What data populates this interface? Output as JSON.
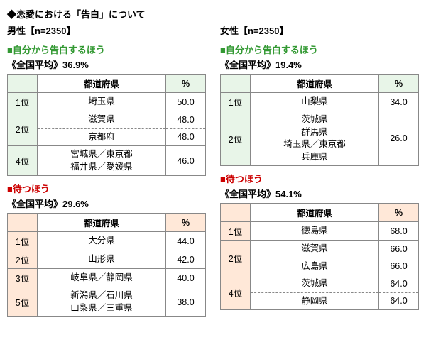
{
  "title": "◆恋愛における「告白」について",
  "male_label": "男性【n=2350】",
  "female_label": "女性【n=2350】",
  "hdr_pref": "都道府県",
  "hdr_pct": "%",
  "sections": {
    "active": {
      "label": "■自分から告白するほう",
      "color": "green",
      "table_color": "green"
    },
    "wait": {
      "label": "■待つほう",
      "color": "red",
      "table_color": "orange"
    }
  },
  "male": {
    "active": {
      "avg": "《全国平均》36.9%",
      "rows": [
        {
          "rank": "1位",
          "pref": "埼玉県",
          "pct": "50.0"
        },
        {
          "rank": "2位",
          "pref_a": "滋賀県",
          "pref_b": "京都府",
          "pct_a": "48.0",
          "pct_b": "48.0",
          "tied": true
        },
        {
          "rank": "4位",
          "pref": "宮城県／東京都\n福井県／愛媛県",
          "pct": "46.0",
          "multi": true
        }
      ]
    },
    "wait": {
      "avg": "《全国平均》29.6%",
      "rows": [
        {
          "rank": "1位",
          "pref": "大分県",
          "pct": "44.0"
        },
        {
          "rank": "2位",
          "pref": "山形県",
          "pct": "42.0"
        },
        {
          "rank": "3位",
          "pref": "岐阜県／静岡県",
          "pct": "40.0"
        },
        {
          "rank": "5位",
          "pref": "新潟県／石川県\n山梨県／三重県",
          "pct": "38.0",
          "multi": true
        }
      ]
    }
  },
  "female": {
    "active": {
      "avg": "《全国平均》19.4%",
      "rows": [
        {
          "rank": "1位",
          "pref": "山梨県",
          "pct": "34.0"
        },
        {
          "rank": "2位",
          "pref": "茨城県\n群馬県\n埼玉県／東京都\n兵庫県",
          "pct": "26.0",
          "multi": true
        }
      ]
    },
    "wait": {
      "avg": "《全国平均》54.1%",
      "rows": [
        {
          "rank": "1位",
          "pref": "徳島県",
          "pct": "68.0"
        },
        {
          "rank": "2位",
          "pref_a": "滋賀県",
          "pref_b": "広島県",
          "pct_a": "66.0",
          "pct_b": "66.0",
          "tied": true
        },
        {
          "rank": "4位",
          "pref_a": "茨城県",
          "pref_b": "静岡県",
          "pct_a": "64.0",
          "pct_b": "64.0",
          "tied": true
        }
      ]
    }
  }
}
